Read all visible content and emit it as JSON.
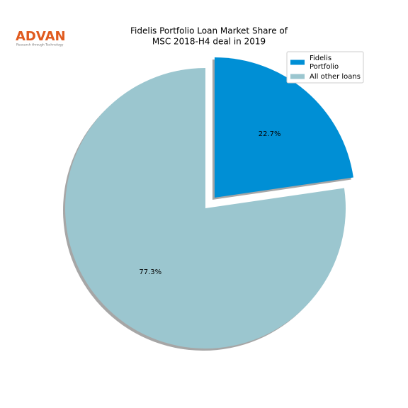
{
  "logo": {
    "name": "ADVAN",
    "tagline": "Research through Technology"
  },
  "chart_data": {
    "type": "pie",
    "title": [
      "Fidelis Portfolio Loan Market Share of",
      "MSC 2018-H4 deal in 2019"
    ],
    "series": [
      {
        "name": [
          "Fidelis",
          "Portfolio"
        ],
        "color": "#008fd5",
        "values": [
          22.7
        ],
        "value_labels": [
          "22.7%"
        ]
      },
      {
        "name": [
          "All other loans"
        ],
        "color": "#9bc6cf",
        "values": [
          77.3
        ],
        "value_labels": [
          "77.3%"
        ]
      }
    ],
    "startangle": 90,
    "explode": [
      0.1,
      0
    ],
    "shadow": true,
    "legend": "upper right"
  }
}
